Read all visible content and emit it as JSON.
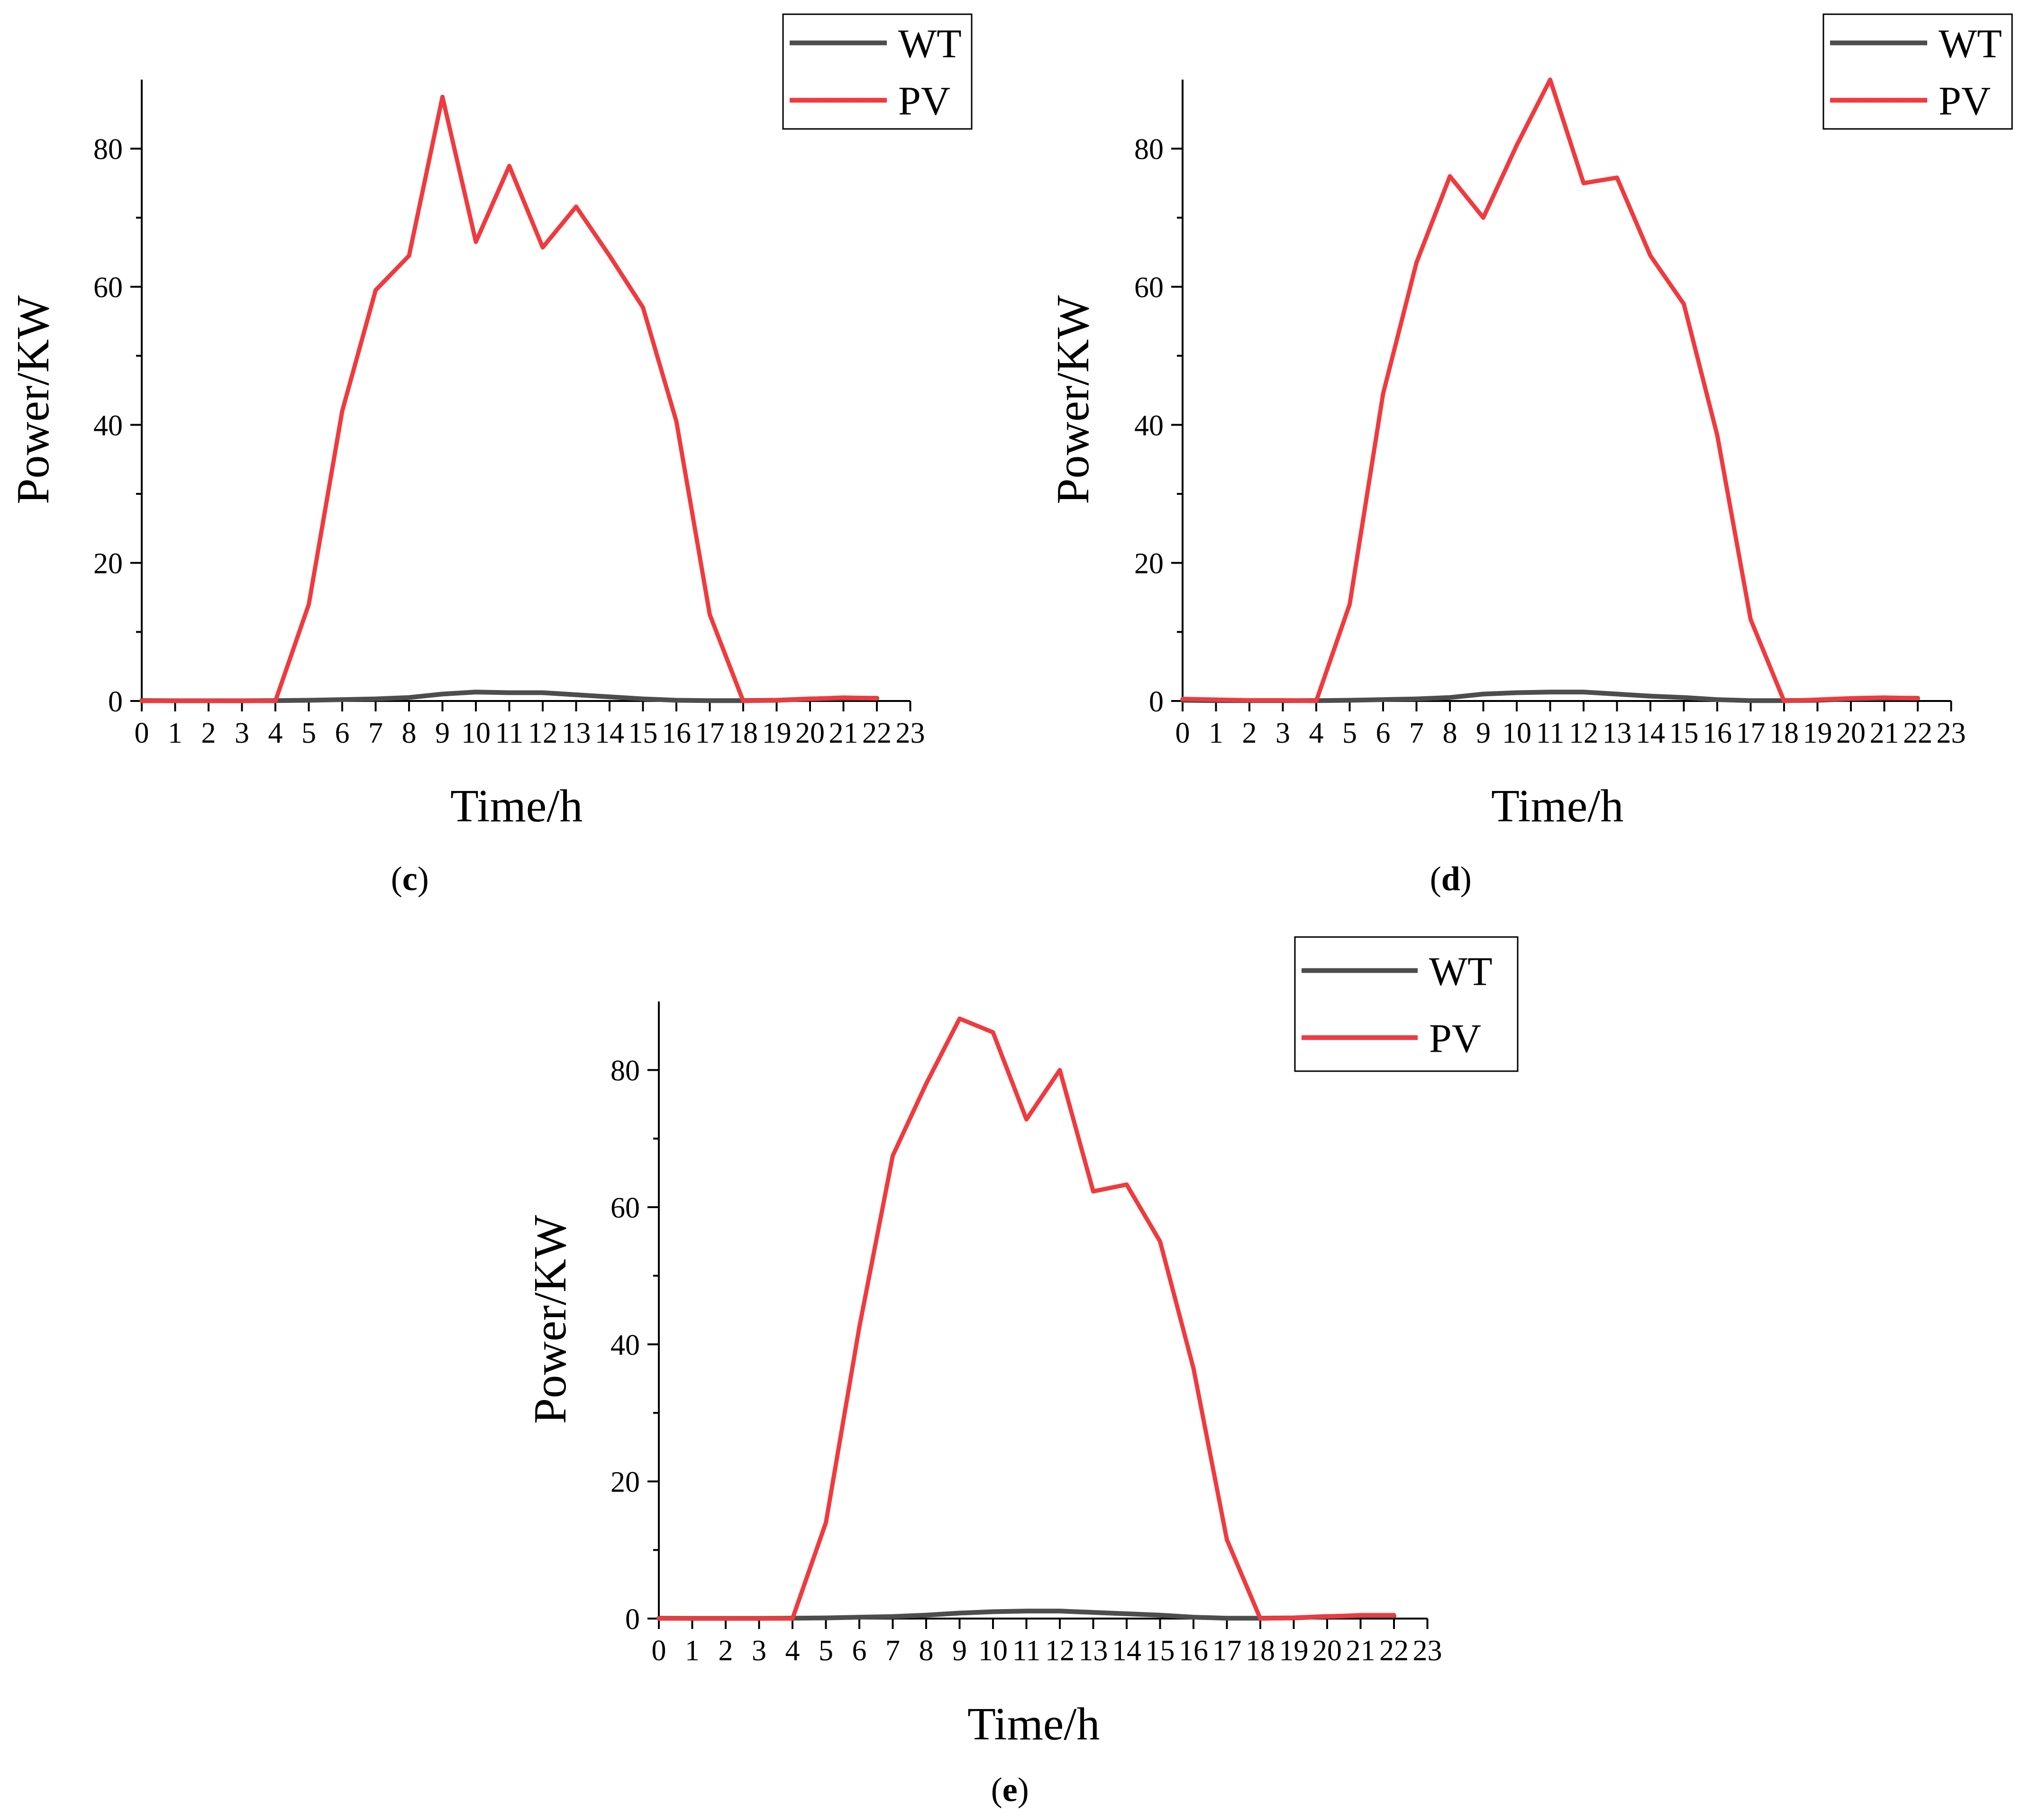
{
  "chart_data": [
    {
      "panel": "c",
      "type": "line",
      "caption": "c",
      "xlabel": "Time/h",
      "ylabel": "Power/KW",
      "x": [
        0,
        1,
        2,
        3,
        4,
        5,
        6,
        7,
        8,
        9,
        10,
        11,
        12,
        13,
        14,
        15,
        16,
        17,
        18,
        19,
        20,
        21,
        22
      ],
      "xticks": [
        "0",
        "1",
        "2",
        "3",
        "4",
        "5",
        "6",
        "7",
        "8",
        "9",
        "10",
        "11",
        "12",
        "13",
        "14",
        "15",
        "16",
        "17",
        "18",
        "19",
        "20",
        "21",
        "22",
        "23"
      ],
      "yticks": [
        "0",
        "20",
        "40",
        "60",
        "80"
      ],
      "xlim": [
        0,
        23
      ],
      "ylim": [
        0,
        90
      ],
      "legend": [
        "WT",
        "PV"
      ],
      "series": [
        {
          "name": "WT",
          "color": "#4d4d4d",
          "values": [
            0.05,
            0.03,
            0.03,
            0.03,
            0.05,
            0.1,
            0.2,
            0.3,
            0.5,
            1.0,
            1.3,
            1.2,
            1.2,
            0.9,
            0.6,
            0.3,
            0.1,
            0.05,
            0.05,
            0.1,
            0.3,
            0.4,
            0.4
          ]
        },
        {
          "name": "PV",
          "color": "#f03a3e",
          "values": [
            0,
            0,
            0,
            0,
            0,
            14,
            42,
            59.5,
            64.5,
            87.5,
            66.5,
            77.5,
            65.7,
            71.6,
            64.5,
            57,
            40.5,
            12.5,
            0,
            0.1,
            0.3,
            0.5,
            0.4
          ]
        }
      ]
    },
    {
      "panel": "d",
      "type": "line",
      "caption": "d",
      "xlabel": "Time/h",
      "ylabel": "Power/KW",
      "x": [
        0,
        1,
        2,
        3,
        4,
        5,
        6,
        7,
        8,
        9,
        10,
        11,
        12,
        13,
        14,
        15,
        16,
        17,
        18,
        19,
        20,
        21,
        22
      ],
      "xticks": [
        "0",
        "1",
        "2",
        "3",
        "4",
        "5",
        "6",
        "7",
        "8",
        "9",
        "10",
        "11",
        "12",
        "13",
        "14",
        "15",
        "16",
        "17",
        "18",
        "19",
        "20",
        "21",
        "22",
        "23"
      ],
      "yticks": [
        "0",
        "20",
        "40",
        "60",
        "80"
      ],
      "xlim": [
        0,
        23
      ],
      "ylim": [
        0,
        90
      ],
      "legend": [
        "WT",
        "PV"
      ],
      "series": [
        {
          "name": "WT",
          "color": "#4d4d4d",
          "values": [
            0.1,
            0.05,
            0.05,
            0.05,
            0.05,
            0.1,
            0.2,
            0.3,
            0.5,
            1.0,
            1.2,
            1.3,
            1.3,
            1.0,
            0.7,
            0.5,
            0.2,
            0.05,
            0.05,
            0.1,
            0.3,
            0.4,
            0.4
          ]
        },
        {
          "name": "PV",
          "color": "#f03a3e",
          "values": [
            0.3,
            0.2,
            0.1,
            0.1,
            0,
            14,
            44.5,
            63.5,
            76,
            70,
            80.5,
            90,
            75,
            75.8,
            64.5,
            57.5,
            38.5,
            11.8,
            0,
            0.2,
            0.4,
            0.5,
            0.4
          ]
        }
      ]
    },
    {
      "panel": "e",
      "type": "line",
      "caption": "e",
      "xlabel": "Time/h",
      "ylabel": "Power/KW",
      "x": [
        0,
        1,
        2,
        3,
        4,
        5,
        6,
        7,
        8,
        9,
        10,
        11,
        12,
        13,
        14,
        15,
        16,
        17,
        18,
        19,
        20,
        21,
        22
      ],
      "xticks": [
        "0",
        "1",
        "2",
        "3",
        "4",
        "5",
        "6",
        "7",
        "8",
        "9",
        "10",
        "11",
        "12",
        "13",
        "14",
        "15",
        "16",
        "17",
        "18",
        "19",
        "20",
        "21",
        "22",
        "23"
      ],
      "yticks": [
        "0",
        "20",
        "40",
        "60",
        "80"
      ],
      "xlim": [
        0,
        23
      ],
      "ylim": [
        0,
        90
      ],
      "legend": [
        "WT",
        "PV"
      ],
      "series": [
        {
          "name": "WT",
          "color": "#4d4d4d",
          "values": [
            0.05,
            0.03,
            0.03,
            0.03,
            0.05,
            0.1,
            0.2,
            0.3,
            0.5,
            0.8,
            1.0,
            1.1,
            1.1,
            0.9,
            0.7,
            0.5,
            0.2,
            0.05,
            0.05,
            0.1,
            0.3,
            0.4,
            0.4
          ]
        },
        {
          "name": "PV",
          "color": "#f03a3e",
          "values": [
            0,
            0,
            0,
            0,
            0,
            14,
            42.5,
            67.5,
            78,
            87.5,
            85.5,
            72.8,
            80,
            62.3,
            63.3,
            55,
            36.5,
            11.5,
            0,
            0.1,
            0.3,
            0.5,
            0.5
          ]
        }
      ]
    }
  ]
}
